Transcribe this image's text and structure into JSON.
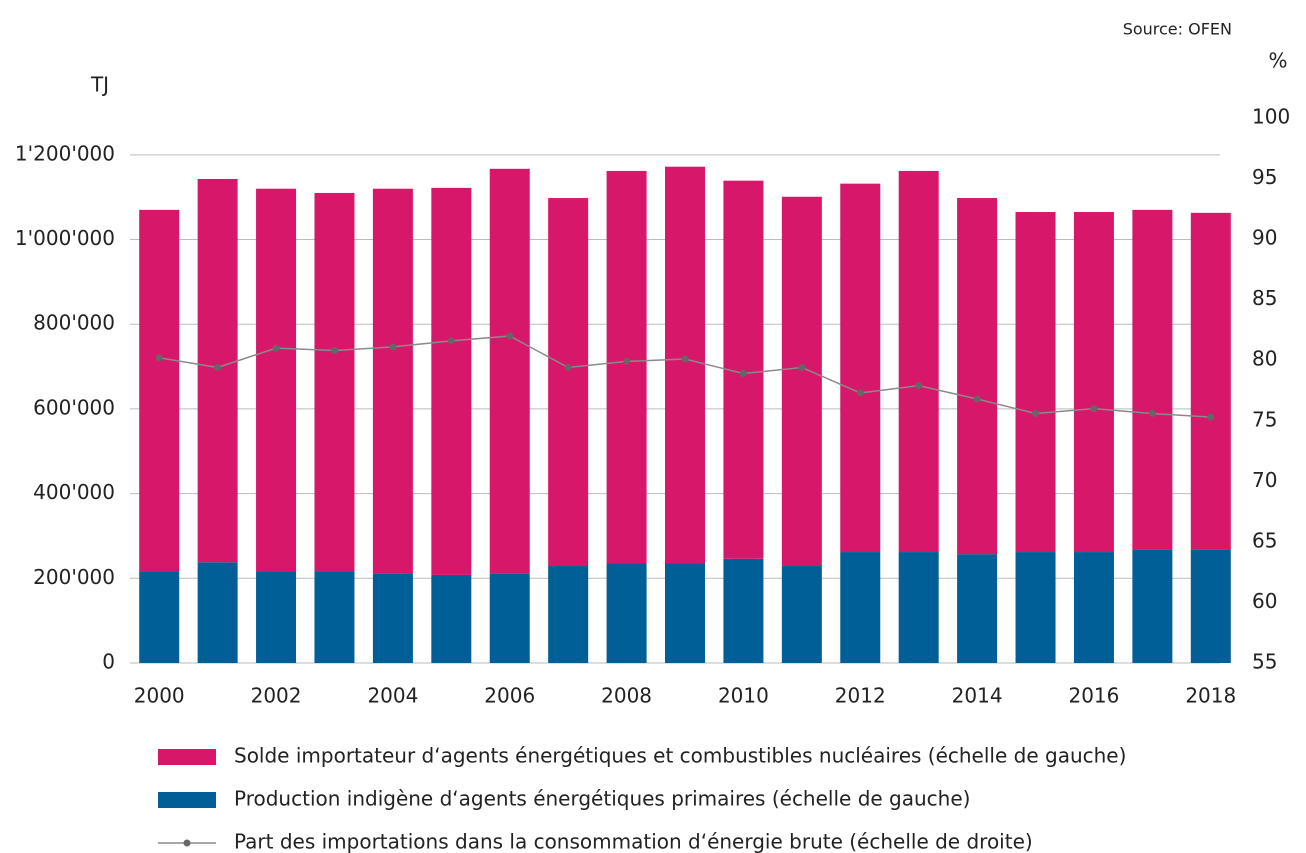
{
  "chart_data": {
    "type": "bar",
    "source": "Source: OFEN",
    "y_label": "TJ",
    "y2_label": "%",
    "categories": [
      "2000",
      null,
      "2002",
      null,
      "2004",
      null,
      "2006",
      null,
      "2008",
      null,
      "2010",
      null,
      "2012",
      null,
      "2014",
      null,
      "2016",
      null,
      "2018"
    ],
    "series": [
      {
        "name": "Production indigène d‘agents énergétiques primaires (échelle de gauche)",
        "color": "#005f96",
        "values": [
          217000,
          238000,
          217000,
          217000,
          212000,
          208000,
          212000,
          229000,
          236000,
          236000,
          246000,
          229000,
          262000,
          262000,
          257000,
          262000,
          262000,
          267000,
          267000
        ]
      },
      {
        "name": "Solde importateur d‘agents énergétiques et combustibles nucléaires (échelle de gauche)",
        "color": "#d7186a",
        "values": [
          853000,
          905000,
          903000,
          893000,
          908000,
          914000,
          955000,
          869000,
          926000,
          936000,
          893000,
          872000,
          870000,
          900000,
          841000,
          803000,
          803000,
          803000,
          796000
        ]
      },
      {
        "name": "Part des importations dans la consommation d‘énergie brute (échelle de droite)",
        "color": "#8a8a8a",
        "axis": "y2",
        "type": "line",
        "values": [
          80.2,
          79.4,
          81.0,
          80.8,
          81.1,
          81.6,
          82.0,
          79.4,
          79.9,
          80.1,
          78.9,
          79.4,
          77.3,
          77.9,
          76.8,
          75.6,
          76.0,
          75.6,
          75.3
        ]
      }
    ],
    "stacked": true,
    "ylim": [
      0,
      1287000
    ],
    "yticks": [
      0,
      {
        "value": 200000,
        "label": "200'000"
      },
      {
        "value": 400000,
        "label": "400'000"
      },
      {
        "value": 600000,
        "label": "600'000"
      },
      {
        "value": 800000,
        "label": "800'000"
      },
      {
        "value": 1000000,
        "label": "1'000'000"
      },
      {
        "value": 1200000,
        "label": "1'200'000"
      }
    ],
    "y2lim": [
      55,
      100
    ],
    "y2ticks": [
      55,
      60,
      65,
      70,
      75,
      80,
      85,
      90,
      95,
      100
    ],
    "grid": true
  }
}
